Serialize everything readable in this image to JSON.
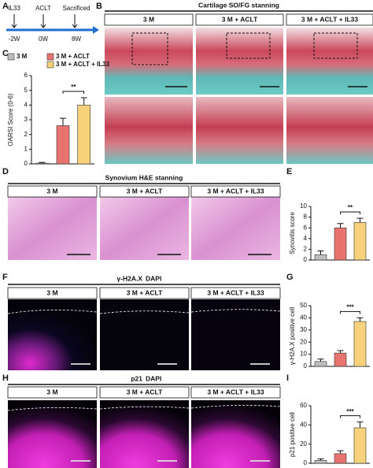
{
  "panel_labels": [
    "A",
    "B",
    "C",
    "D",
    "E",
    "F",
    "G",
    "H",
    "I"
  ],
  "timeline": {
    "events": [
      "IL33",
      "ACLT",
      "Sacrificed"
    ],
    "times": [
      "-2W",
      "0W",
      "8W"
    ]
  },
  "panel_b": {
    "title": "Cartilage SO/FG stanning",
    "columns": [
      "3 M",
      "3 M + ACLT",
      "3 M + ACLT + IL33"
    ]
  },
  "panel_d": {
    "title": "Synovium H&E stanning",
    "columns": [
      "3 M",
      "3 M + ACLT",
      "3 M + ACLT + IL33"
    ]
  },
  "panel_f": {
    "title_parts": [
      "γ-H2A.X",
      "DAPI"
    ],
    "columns": [
      "3 M",
      "3 M + ACLT",
      "3 M + ACLT + IL33"
    ]
  },
  "panel_h": {
    "title_parts": [
      "p21",
      "DAPI"
    ],
    "columns": [
      "3 M",
      "3 M + ACLT",
      "3 M + ACLT + IL33"
    ]
  },
  "chart_data": [
    {
      "type": "bar",
      "categories": [
        "3 M",
        "3 M + ACLT",
        "3 M + ACLT + IL33"
      ],
      "colors": [
        "#bdbdbd",
        "#e8736f",
        "#f7d27a"
      ],
      "values": [
        0.05,
        2.6,
        4.0
      ],
      "errors": [
        0.05,
        0.5,
        0.5
      ],
      "ylabel": "OARSI Score (0-6)",
      "ylim": [
        0,
        6
      ],
      "yticks": [
        0,
        1,
        2,
        3,
        4,
        5,
        6
      ],
      "significance": "**"
    },
    {
      "type": "bar",
      "colors": [
        "#bdbdbd",
        "#e8736f",
        "#f7d27a"
      ],
      "values": [
        1,
        6,
        7
      ],
      "errors": [
        0.7,
        0.8,
        0.8
      ],
      "ylabel": "Synovitis score",
      "ylim": [
        0,
        10
      ],
      "yticks": [
        0,
        2,
        4,
        6,
        8,
        10
      ],
      "significance": "**"
    },
    {
      "type": "bar",
      "colors": [
        "#bdbdbd",
        "#e8736f",
        "#f7d27a"
      ],
      "values": [
        4,
        11,
        37
      ],
      "errors": [
        2,
        2,
        3
      ],
      "ylabel": "γ-H2A.X positive cell",
      "ylim": [
        0,
        50
      ],
      "yticks": [
        0,
        10,
        20,
        30,
        40,
        50
      ],
      "significance": "***"
    },
    {
      "type": "bar",
      "colors": [
        "#bdbdbd",
        "#e8736f",
        "#f7d27a"
      ],
      "values": [
        3,
        10,
        37
      ],
      "errors": [
        1.5,
        3,
        6
      ],
      "ylabel": "p21 positive cell",
      "ylim": [
        0,
        60
      ],
      "yticks": [
        0,
        20,
        40,
        60
      ],
      "significance": "***"
    }
  ]
}
